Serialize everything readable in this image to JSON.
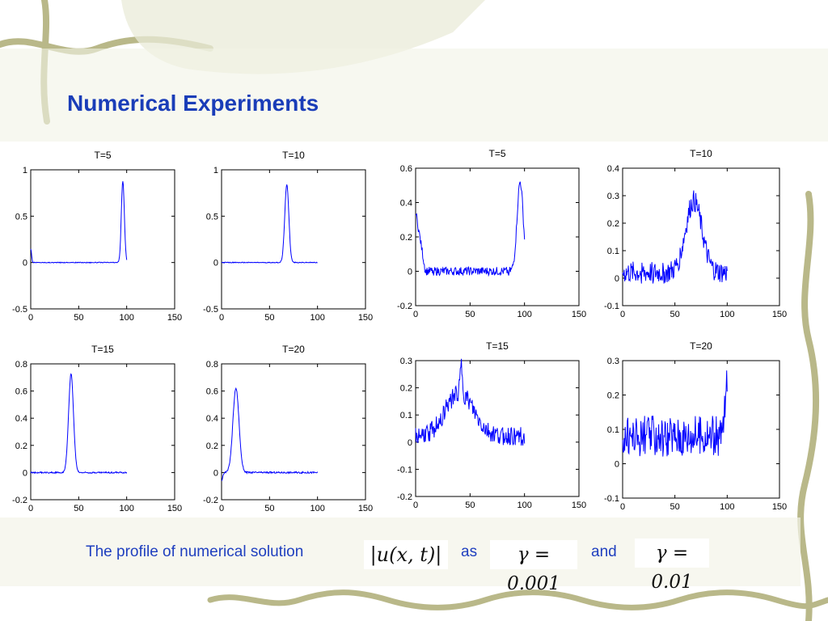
{
  "slide": {
    "title": "Numerical Experiments",
    "caption_text": "The profile of numerical solution",
    "caption_as": "as",
    "caption_and": "and",
    "math_u": "|u(x, t)|",
    "math_gamma1": "γ = 0.001",
    "math_gamma2": "γ = 0.01"
  },
  "style": {
    "line_color": "#0000ff",
    "title_color": "#1a3db8",
    "caption_color": "#1f3fbf",
    "decoration_color": "#b9b889"
  },
  "chart_data": [
    {
      "type": "line",
      "title": "T=5",
      "xlim": [
        0,
        150
      ],
      "ylim": [
        -0.5,
        1
      ],
      "xticks": [
        0,
        50,
        100,
        150
      ],
      "yticks": [
        -0.5,
        0,
        0.5,
        1
      ],
      "ytick_labels": [
        "-0.5",
        "0",
        "0.5",
        "1"
      ],
      "x_end": 100,
      "noise": 0.004,
      "baseline": 0,
      "features": [
        {
          "kind": "peak",
          "x": 96,
          "amp": 0.88,
          "w": 2.2
        },
        {
          "kind": "peak",
          "x": 0,
          "amp": 0.15,
          "w": 1.2
        }
      ]
    },
    {
      "type": "line",
      "title": "T=10",
      "xlim": [
        0,
        150
      ],
      "ylim": [
        -0.5,
        1
      ],
      "xticks": [
        0,
        50,
        100,
        150
      ],
      "yticks": [
        -0.5,
        0,
        0.5,
        1
      ],
      "ytick_labels": [
        "-0.5",
        "0",
        "0.5",
        "1"
      ],
      "x_end": 100,
      "noise": 0.004,
      "baseline": 0,
      "features": [
        {
          "kind": "peak",
          "x": 68,
          "amp": 0.84,
          "w": 3
        }
      ]
    },
    {
      "type": "line",
      "title": "T=5",
      "xlim": [
        0,
        150
      ],
      "ylim": [
        -0.2,
        0.6
      ],
      "xticks": [
        0,
        50,
        100,
        150
      ],
      "yticks": [
        -0.2,
        0,
        0.2,
        0.4,
        0.6
      ],
      "ytick_labels": [
        "-0.2",
        "0",
        "0.2",
        "0.4",
        "0.6"
      ],
      "x_end": 100,
      "noise": 0.025,
      "baseline": 0,
      "features": [
        {
          "kind": "peak",
          "x": 96,
          "amp": 0.52,
          "w": 4
        },
        {
          "kind": "ramp",
          "x0": 0,
          "x1": 9,
          "v0": 0.35,
          "v1": 0
        }
      ]
    },
    {
      "type": "line",
      "title": "T=10",
      "xlim": [
        0,
        150
      ],
      "ylim": [
        -0.1,
        0.4
      ],
      "xticks": [
        0,
        50,
        100,
        150
      ],
      "yticks": [
        -0.1,
        0,
        0.1,
        0.2,
        0.3,
        0.4
      ],
      "ytick_labels": [
        "-0.1",
        "0",
        "0.1",
        "0.2",
        "0.3",
        "0.4"
      ],
      "x_end": 100,
      "noise": 0.04,
      "baseline": 0.02,
      "features": [
        {
          "kind": "peak",
          "x": 68,
          "amp": 0.26,
          "w": 11
        }
      ]
    },
    {
      "type": "line",
      "title": "T=15",
      "xlim": [
        0,
        150
      ],
      "ylim": [
        -0.2,
        0.8
      ],
      "xticks": [
        0,
        50,
        100,
        150
      ],
      "yticks": [
        -0.2,
        0,
        0.2,
        0.4,
        0.6,
        0.8
      ],
      "ytick_labels": [
        "-0.2",
        "0",
        "0.2",
        "0.4",
        "0.6",
        "0.8"
      ],
      "x_end": 100,
      "noise": 0.005,
      "baseline": 0,
      "features": [
        {
          "kind": "peak",
          "x": 42,
          "amp": 0.73,
          "w": 3.6
        }
      ]
    },
    {
      "type": "line",
      "title": "T=20",
      "xlim": [
        0,
        150
      ],
      "ylim": [
        -0.2,
        0.8
      ],
      "xticks": [
        0,
        50,
        100,
        150
      ],
      "yticks": [
        -0.2,
        0,
        0.2,
        0.4,
        0.6,
        0.8
      ],
      "ytick_labels": [
        "-0.2",
        "0",
        "0.2",
        "0.4",
        "0.6",
        "0.8"
      ],
      "x_end": 100,
      "noise": 0.006,
      "baseline": 0,
      "features": [
        {
          "kind": "peak",
          "x": 15,
          "amp": 0.62,
          "w": 4.5
        },
        {
          "kind": "peak",
          "x": 0,
          "amp": -0.06,
          "w": 1.5
        }
      ]
    },
    {
      "type": "line",
      "title": "T=15",
      "xlim": [
        0,
        150
      ],
      "ylim": [
        -0.2,
        0.3
      ],
      "xticks": [
        0,
        50,
        100,
        150
      ],
      "yticks": [
        -0.2,
        -0.1,
        0,
        0.1,
        0.2,
        0.3
      ],
      "ytick_labels": [
        "-0.2",
        "-0.1",
        "0",
        "0.1",
        "0.2",
        "0.3"
      ],
      "x_end": 100,
      "noise": 0.035,
      "baseline": 0.02,
      "features": [
        {
          "kind": "peak",
          "x": 40,
          "amp": 0.16,
          "w": 18
        },
        {
          "kind": "peak",
          "x": 42,
          "amp": 0.1,
          "w": 1.5
        }
      ]
    },
    {
      "type": "line",
      "title": "T=20",
      "xlim": [
        0,
        150
      ],
      "ylim": [
        -0.1,
        0.3
      ],
      "xticks": [
        0,
        50,
        100,
        150
      ],
      "yticks": [
        -0.1,
        0,
        0.1,
        0.2,
        0.3
      ],
      "ytick_labels": [
        "-0.1",
        "0",
        "0.1",
        "0.2",
        "0.3"
      ],
      "x_end": 100,
      "noise": 0.06,
      "baseline": 0.08,
      "features": [
        {
          "kind": "ramp",
          "x0": 95,
          "x1": 100,
          "v0": 0,
          "v1": 0.15
        }
      ]
    }
  ]
}
